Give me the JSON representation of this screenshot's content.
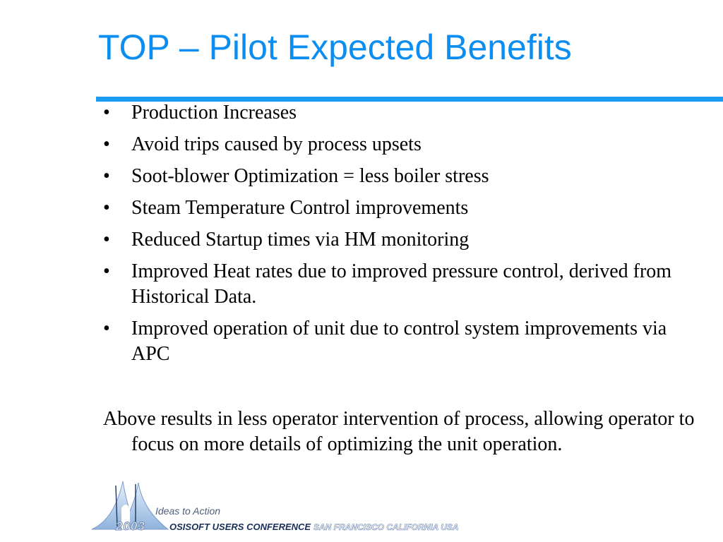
{
  "slide": {
    "title": "TOP – Pilot Expected Benefits",
    "bullet_char": "•",
    "bullets": [
      "Production Increases",
      "Avoid trips caused by process upsets",
      "Soot-blower Optimization = less boiler stress",
      "Steam Temperature Control improvements",
      "Reduced Startup times via HM monitoring",
      "Improved Heat rates due to improved pressure control, derived from Historical Data.",
      "Improved operation of unit due to control system improvements via APC"
    ],
    "summary": "Above results in less operator intervention of process, allowing operator to focus on more details of optimizing the unit operation."
  },
  "footer": {
    "tagline": "Ideas to Action",
    "year": "2003",
    "conference": "OSISOFT USERS CONFERENCE",
    "location": "SAN FRANCISCO CALIFORNIA USA"
  },
  "colors": {
    "title": "#0b8ef0",
    "rule": "#199cf2",
    "body_text": "#000000"
  }
}
